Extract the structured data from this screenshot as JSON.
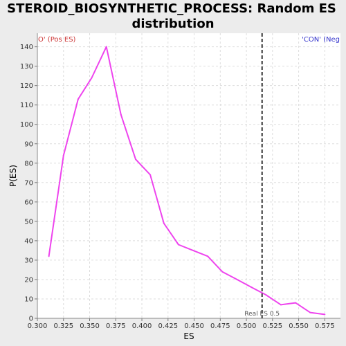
{
  "chart_data": {
    "type": "line",
    "title_lines": [
      "STEROID_BIOSYNTHETIC_PROCESS: Random ES",
      "distribution"
    ],
    "xlabel": "ES",
    "ylabel": "P(ES)",
    "xlim": [
      0.3,
      0.59
    ],
    "ylim": [
      0,
      147
    ],
    "x_ticks": [
      0.3,
      0.325,
      0.35,
      0.375,
      0.4,
      0.425,
      0.45,
      0.475,
      0.5,
      0.525,
      0.55,
      0.575
    ],
    "x_tick_labels": [
      "0.300",
      "0.325",
      "0.350",
      "0.375",
      "0.400",
      "0.425",
      "0.450",
      "0.475",
      "0.500",
      "0.525",
      "0.550",
      "0.575"
    ],
    "y_ticks": [
      0,
      10,
      20,
      30,
      40,
      50,
      60,
      70,
      80,
      90,
      100,
      110,
      120,
      130,
      140
    ],
    "y_tick_labels": [
      "0",
      "10",
      "20",
      "30",
      "40",
      "50",
      "60",
      "70",
      "80",
      "90",
      "100",
      "110",
      "120",
      "130",
      "140"
    ],
    "grid": true,
    "series": [
      {
        "color": "#ee44ee",
        "x": [
          0.311,
          0.325,
          0.339,
          0.352,
          0.366,
          0.38,
          0.394,
          0.408,
          0.421,
          0.435,
          0.449,
          0.463,
          0.477,
          0.491,
          0.505,
          0.519,
          0.533,
          0.547,
          0.561,
          0.575
        ],
        "y": [
          32,
          84,
          113,
          124,
          140,
          105,
          82,
          74,
          49,
          38,
          35,
          32,
          24,
          20,
          16,
          12,
          7,
          8,
          3,
          2
        ]
      }
    ],
    "marker": {
      "x": 0.515,
      "label": "Real ES 0.5",
      "style": "dashed",
      "color": "#333333"
    },
    "corner_left": {
      "text": "O' (Pos ES)",
      "color": "#cc3333"
    },
    "corner_right": {
      "text": "'CON' (Neg",
      "color": "#3333cc"
    }
  }
}
